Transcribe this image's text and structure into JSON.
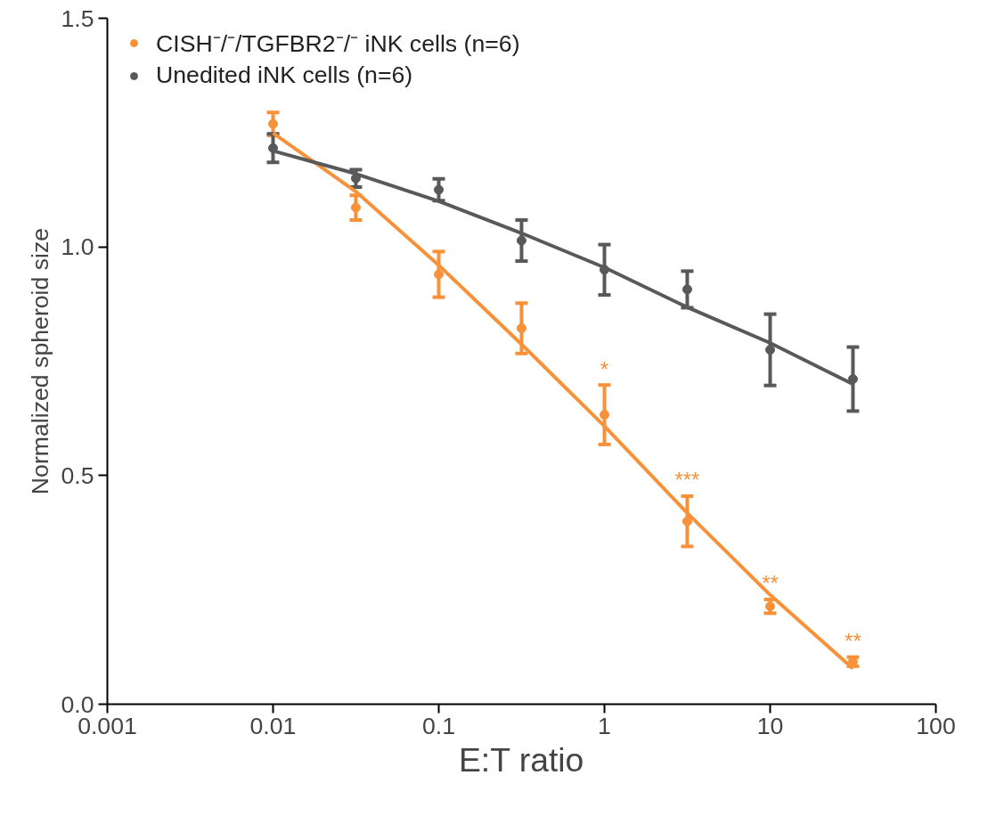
{
  "chart_data": {
    "type": "scatter",
    "xlabel": "E:T ratio",
    "ylabel": "Normalized spheroid size",
    "log": "x",
    "grid": false,
    "legend": "top left",
    "marker": "circle",
    "xlim": [
      0.001,
      100
    ],
    "xticks": [
      0.001,
      0.01,
      0.1,
      1,
      10,
      100
    ],
    "ylim": [
      0,
      1.5
    ],
    "yticks": [
      {
        "value": 0,
        "label": "0.0"
      },
      {
        "value": 0.5,
        "label": "0.5"
      },
      {
        "value": 1,
        "label": "1.0"
      },
      {
        "value": 1.5,
        "label": "1.5"
      }
    ],
    "series": [
      {
        "name": "CISH⁻/⁻/TGFBR2⁻/⁻ iNK cells (n=6)",
        "color": "#f7923a",
        "x": [
          0.01,
          0.0316,
          0.1,
          0.316,
          1,
          3.16,
          10,
          31.6
        ],
        "values": [
          1.269,
          1.086,
          0.94,
          0.822,
          0.633,
          0.4,
          0.214,
          0.093
        ],
        "errors": [
          0.025,
          0.027,
          0.05,
          0.055,
          0.065,
          0.055,
          0.015,
          0.01
        ]
      },
      {
        "name": "Unedited iNK cells (n=6)",
        "color": "#58595b",
        "x": [
          0.01,
          0.0316,
          0.1,
          0.316,
          1,
          3.16,
          10,
          31.6
        ],
        "values": [
          1.216,
          1.15,
          1.125,
          1.014,
          0.95,
          0.907,
          0.775,
          0.711
        ],
        "errors": [
          0.031,
          0.019,
          0.024,
          0.045,
          0.055,
          0.04,
          0.078,
          0.07
        ]
      },
      {
        "type": "line",
        "color": "#f7923a",
        "marker": "none",
        "x": [
          0.01,
          0.0316,
          0.1,
          0.316,
          1,
          3.16,
          10,
          31.6
        ],
        "values": [
          1.249,
          1.121,
          0.96,
          0.787,
          0.608,
          0.418,
          0.239,
          0.078
        ]
      },
      {
        "type": "line",
        "color": "#58595b",
        "marker": "none",
        "x": [
          0.01,
          0.0316,
          0.1,
          0.316,
          1,
          3.16,
          10,
          31.6
        ],
        "values": [
          1.21,
          1.16,
          1.1,
          1.03,
          0.955,
          0.868,
          0.79,
          0.7
        ]
      }
    ],
    "annotations": [
      {
        "text": "*",
        "x": 1,
        "y": 0.633
      },
      {
        "text": "***",
        "x": 3.16,
        "y": 0.4
      },
      {
        "text": "**",
        "x": 10,
        "y": 0.214
      },
      {
        "text": "**",
        "x": 31.6,
        "y": 0.093
      }
    ]
  }
}
